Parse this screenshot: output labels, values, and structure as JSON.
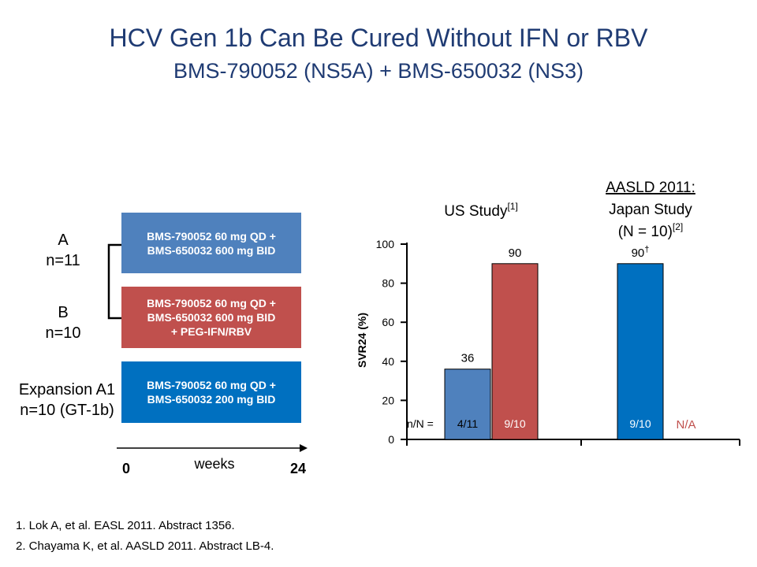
{
  "title": "HCV Gen 1b Can Be Cured Without IFN or RBV",
  "subtitle": "BMS-790052 (NS5A) + BMS-650032 (NS3)",
  "arms": [
    {
      "label_line1": "A",
      "label_line2": "n=11",
      "regimen": [
        "BMS-790052 60 mg QD +",
        "BMS-650032 600 mg BID"
      ],
      "color": "#4f81bd"
    },
    {
      "label_line1": "B",
      "label_line2": "n=10",
      "regimen": [
        "BMS-790052 60 mg QD +",
        "BMS-650032 600 mg BID",
        "+ PEG-IFN/RBV"
      ],
      "color": "#c0504d"
    },
    {
      "label_line1": "Expansion A1",
      "label_line2": "n=10 (GT-1b)",
      "regimen": [
        "BMS-790052 60 mg QD +",
        "BMS-650032 200 mg BID"
      ],
      "color": "#0070c0"
    }
  ],
  "timeline": {
    "start": "0",
    "end": "24",
    "unit": "weeks"
  },
  "references": [
    "1. Lok A, et al. EASL 2011. Abstract 1356.",
    "2. Chayama K, et al. AASLD 2011. Abstract LB-4."
  ],
  "chart_data": {
    "type": "bar",
    "ylabel": "SVR24 (%)",
    "xlabel": "",
    "ylim": [
      0,
      100
    ],
    "yticks": [
      0,
      20,
      40,
      60,
      80,
      100
    ],
    "groups": [
      {
        "title": "US Study",
        "ref": "[1]"
      },
      {
        "title_line1": "AASLD 2011:",
        "title_line2": "Japan Study",
        "title_line3": "(N = 10)",
        "ref": "[2]"
      }
    ],
    "nN_label": "n/N =",
    "bars": [
      {
        "group": 0,
        "value": 36,
        "value_label": "36",
        "nN": "4/11",
        "color": "#4f81bd",
        "nN_color": "#000000"
      },
      {
        "group": 0,
        "value": 90,
        "value_label": "90",
        "nN": "9/10",
        "color": "#c0504d",
        "nN_color": "#ffffff"
      },
      {
        "group": 1,
        "value": 90,
        "value_label": "90",
        "value_suffix": "†",
        "nN": "9/10",
        "color": "#0070c0",
        "nN_color": "#ffffff"
      }
    ],
    "na_label": "N/A",
    "na_color": "#c0504d"
  }
}
